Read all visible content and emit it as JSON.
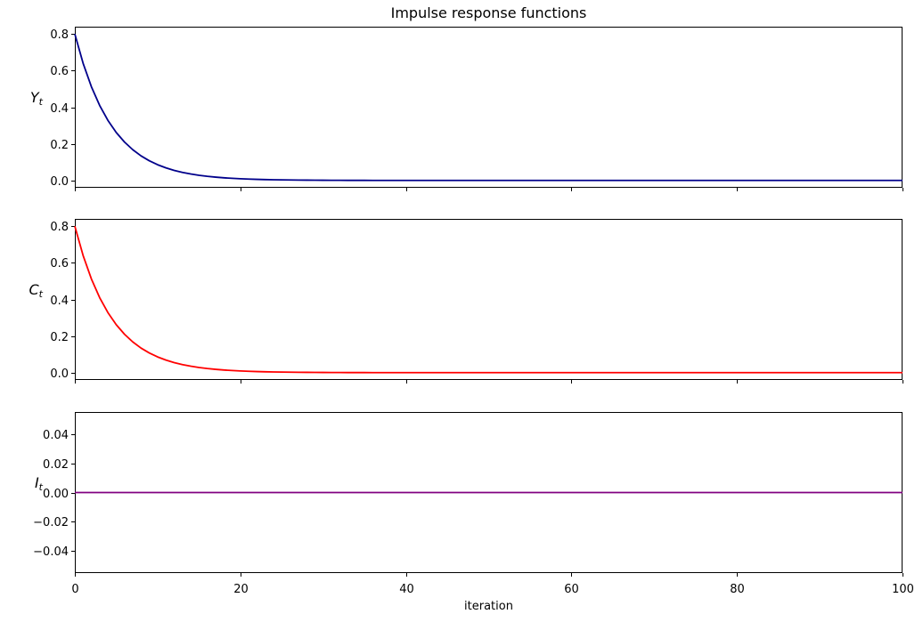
{
  "title": "Impulse response functions",
  "chart_data": {
    "type": "line",
    "title": "Impulse response functions",
    "xlabel": "iteration",
    "x_start": 0,
    "x_end": 100,
    "xlim": [
      0,
      100
    ],
    "xticks": [
      0,
      20,
      40,
      60,
      80,
      100
    ],
    "xtick_labels": [
      "0",
      "20",
      "40",
      "60",
      "80",
      "100"
    ],
    "grid": false,
    "legend": false,
    "subplots": [
      {
        "name": "Yt",
        "ylabel_main": "Y",
        "ylabel_sub": "t",
        "color": "#00008b",
        "ylim": [
          -0.04,
          0.84
        ],
        "yticks": [
          0.0,
          0.2,
          0.4,
          0.6,
          0.8
        ],
        "ytick_labels": [
          "0.0",
          "0.2",
          "0.4",
          "0.6",
          "0.8"
        ],
        "show_xtick_labels": false,
        "values": [
          0.8,
          0.64,
          0.512,
          0.4096,
          0.32768,
          0.26214,
          0.20972,
          0.16777,
          0.13422,
          0.10737,
          0.0859,
          0.06872,
          0.05498,
          0.04398,
          0.03518,
          0.02815,
          0.02252,
          0.01801,
          0.01441,
          0.01153,
          0.00922,
          0.00738,
          0.0059,
          0.00472,
          0.00378,
          0.00302,
          0.00242,
          0.00193,
          0.00155,
          0.00124,
          0.00099,
          0.00079,
          0.00063,
          0.00051,
          0.00041,
          0.00032,
          0.00026,
          0.00021,
          0.00017,
          0.00013,
          0.00011,
          9e-05,
          7e-05,
          5e-05,
          4e-05,
          3e-05,
          3e-05,
          2e-05,
          2e-05,
          1e-05,
          1e-05,
          1e-05,
          1e-05,
          1e-05,
          0,
          0,
          0,
          0,
          0,
          0,
          0,
          0,
          0,
          0,
          0,
          0,
          0,
          0,
          0,
          0,
          0,
          0,
          0,
          0,
          0,
          0,
          0,
          0,
          0,
          0,
          0,
          0,
          0,
          0,
          0,
          0,
          0,
          0,
          0,
          0,
          0,
          0,
          0,
          0,
          0,
          0,
          0,
          0,
          0,
          0,
          0
        ]
      },
      {
        "name": "Ct",
        "ylabel_main": "C",
        "ylabel_sub": "t",
        "color": "#ff0000",
        "ylim": [
          -0.04,
          0.84
        ],
        "yticks": [
          0.0,
          0.2,
          0.4,
          0.6,
          0.8
        ],
        "ytick_labels": [
          "0.0",
          "0.2",
          "0.4",
          "0.6",
          "0.8"
        ],
        "show_xtick_labels": false,
        "values": [
          0.8,
          0.64,
          0.512,
          0.4096,
          0.32768,
          0.26214,
          0.20972,
          0.16777,
          0.13422,
          0.10737,
          0.0859,
          0.06872,
          0.05498,
          0.04398,
          0.03518,
          0.02815,
          0.02252,
          0.01801,
          0.01441,
          0.01153,
          0.00922,
          0.00738,
          0.0059,
          0.00472,
          0.00378,
          0.00302,
          0.00242,
          0.00193,
          0.00155,
          0.00124,
          0.00099,
          0.00079,
          0.00063,
          0.00051,
          0.00041,
          0.00032,
          0.00026,
          0.00021,
          0.00017,
          0.00013,
          0.00011,
          9e-05,
          7e-05,
          5e-05,
          4e-05,
          3e-05,
          3e-05,
          2e-05,
          2e-05,
          1e-05,
          1e-05,
          1e-05,
          1e-05,
          1e-05,
          0,
          0,
          0,
          0,
          0,
          0,
          0,
          0,
          0,
          0,
          0,
          0,
          0,
          0,
          0,
          0,
          0,
          0,
          0,
          0,
          0,
          0,
          0,
          0,
          0,
          0,
          0,
          0,
          0,
          0,
          0,
          0,
          0,
          0,
          0,
          0,
          0,
          0,
          0,
          0,
          0,
          0,
          0,
          0,
          0,
          0,
          0
        ]
      },
      {
        "name": "It",
        "ylabel_main": "I",
        "ylabel_sub": "t",
        "color": "#800080",
        "ylim": [
          -0.055,
          0.055
        ],
        "yticks": [
          -0.04,
          -0.02,
          0.0,
          0.02,
          0.04
        ],
        "ytick_labels": [
          "−0.04",
          "−0.02",
          "0.00",
          "0.02",
          "0.04"
        ],
        "show_xtick_labels": true,
        "values": [
          0,
          0,
          0,
          0,
          0,
          0,
          0,
          0,
          0,
          0,
          0,
          0,
          0,
          0,
          0,
          0,
          0,
          0,
          0,
          0,
          0,
          0,
          0,
          0,
          0,
          0,
          0,
          0,
          0,
          0,
          0,
          0,
          0,
          0,
          0,
          0,
          0,
          0,
          0,
          0,
          0,
          0,
          0,
          0,
          0,
          0,
          0,
          0,
          0,
          0,
          0,
          0,
          0,
          0,
          0,
          0,
          0,
          0,
          0,
          0,
          0,
          0,
          0,
          0,
          0,
          0,
          0,
          0,
          0,
          0,
          0,
          0,
          0,
          0,
          0,
          0,
          0,
          0,
          0,
          0,
          0,
          0,
          0,
          0,
          0,
          0,
          0,
          0,
          0,
          0,
          0,
          0,
          0,
          0,
          0,
          0,
          0,
          0,
          0,
          0,
          0
        ]
      }
    ]
  }
}
